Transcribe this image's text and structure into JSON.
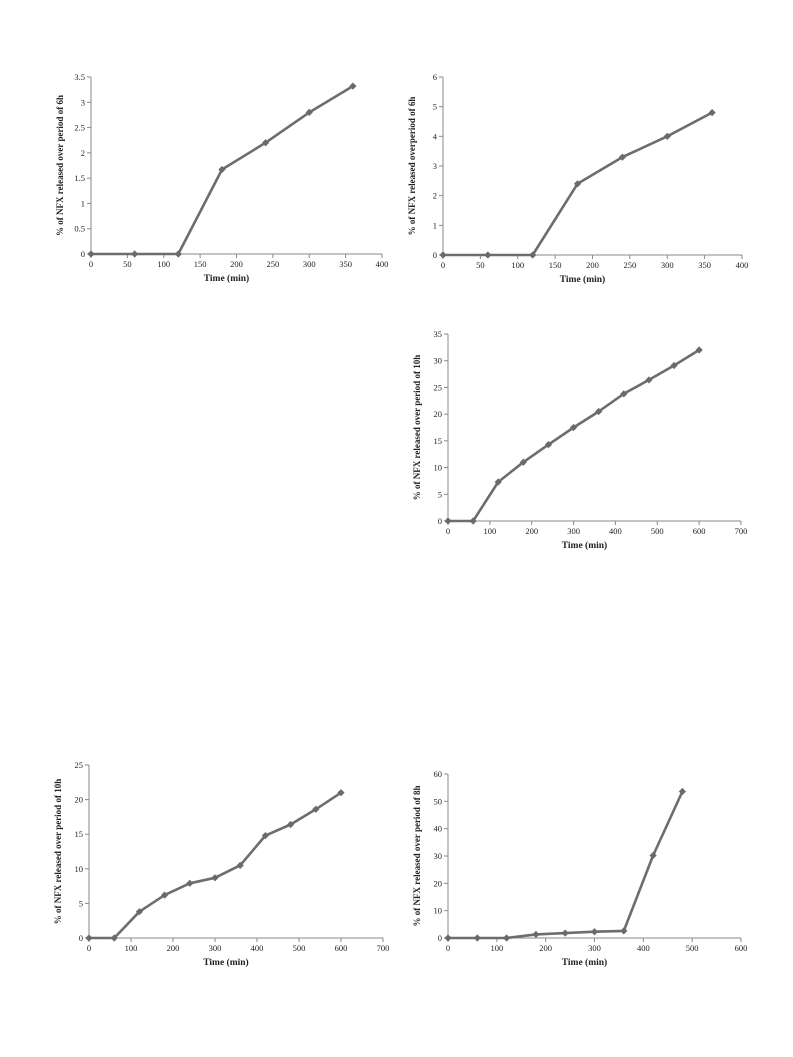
{
  "line_color": "#6d6d6d",
  "marker_color": "#6a6a6a",
  "chart_data": [
    {
      "type": "line",
      "xlabel": "Time (min)",
      "ylabel": "% of NFX released over period of 6h",
      "xlim": [
        0,
        400
      ],
      "ylim": [
        0,
        3.5
      ],
      "xticks": [
        0,
        50,
        100,
        150,
        200,
        250,
        300,
        350,
        400
      ],
      "yticks": [
        0,
        0.5,
        1,
        1.5,
        2,
        2.5,
        3,
        3.5
      ],
      "x": [
        0,
        60,
        120,
        180,
        240,
        300,
        360
      ],
      "y": [
        0,
        0,
        0,
        1.67,
        2.2,
        2.8,
        3.32
      ]
    },
    {
      "type": "line",
      "xlabel": "Time (min)",
      "ylabel": "% of NFX released overperiod of 6h",
      "xlim": [
        0,
        400
      ],
      "ylim": [
        0,
        6
      ],
      "xticks": [
        0,
        50,
        100,
        150,
        200,
        250,
        300,
        350,
        400
      ],
      "yticks": [
        0,
        1,
        2,
        3,
        4,
        5,
        6
      ],
      "x": [
        0,
        60,
        120,
        180,
        240,
        300,
        360
      ],
      "y": [
        0,
        0,
        0,
        2.4,
        3.3,
        4.0,
        4.8
      ]
    },
    {
      "type": "line",
      "xlabel": "Time (min)",
      "ylabel": "% of NFX released over period of 10h",
      "xlim": [
        0,
        700
      ],
      "ylim": [
        0,
        35
      ],
      "xticks": [
        0,
        100,
        200,
        300,
        400,
        500,
        600,
        700
      ],
      "yticks": [
        0,
        5,
        10,
        15,
        20,
        25,
        30,
        35
      ],
      "x": [
        0,
        60,
        120,
        180,
        240,
        300,
        360,
        420,
        480,
        540,
        600
      ],
      "y": [
        0,
        0,
        7.3,
        11.0,
        14.3,
        17.5,
        20.5,
        23.8,
        26.4,
        29.1,
        32.0
      ]
    },
    {
      "type": "line",
      "xlabel": "Time (min)",
      "ylabel": "% of NFX released over period of 10h",
      "xlim": [
        0,
        700
      ],
      "ylim": [
        0,
        25
      ],
      "xticks": [
        0,
        100,
        200,
        300,
        400,
        500,
        600,
        700
      ],
      "yticks": [
        0,
        5,
        10,
        15,
        20,
        25
      ],
      "x": [
        0,
        60,
        120,
        180,
        240,
        300,
        360,
        420,
        480,
        540,
        600
      ],
      "y": [
        0,
        0,
        3.8,
        6.2,
        7.9,
        8.7,
        10.5,
        14.8,
        16.4,
        18.6,
        21.0
      ]
    },
    {
      "type": "line",
      "xlabel": "Time (min)",
      "ylabel": "% of NFX released over period of 8h",
      "xlim": [
        0,
        600
      ],
      "ylim": [
        0,
        60
      ],
      "xticks": [
        0,
        100,
        200,
        300,
        400,
        500,
        600
      ],
      "yticks": [
        0,
        10,
        20,
        30,
        40,
        50,
        60
      ],
      "x": [
        0,
        60,
        120,
        180,
        240,
        300,
        360,
        420,
        480
      ],
      "y": [
        0,
        0,
        0,
        1.3,
        1.8,
        2.3,
        2.6,
        30.2,
        53.6
      ]
    }
  ]
}
